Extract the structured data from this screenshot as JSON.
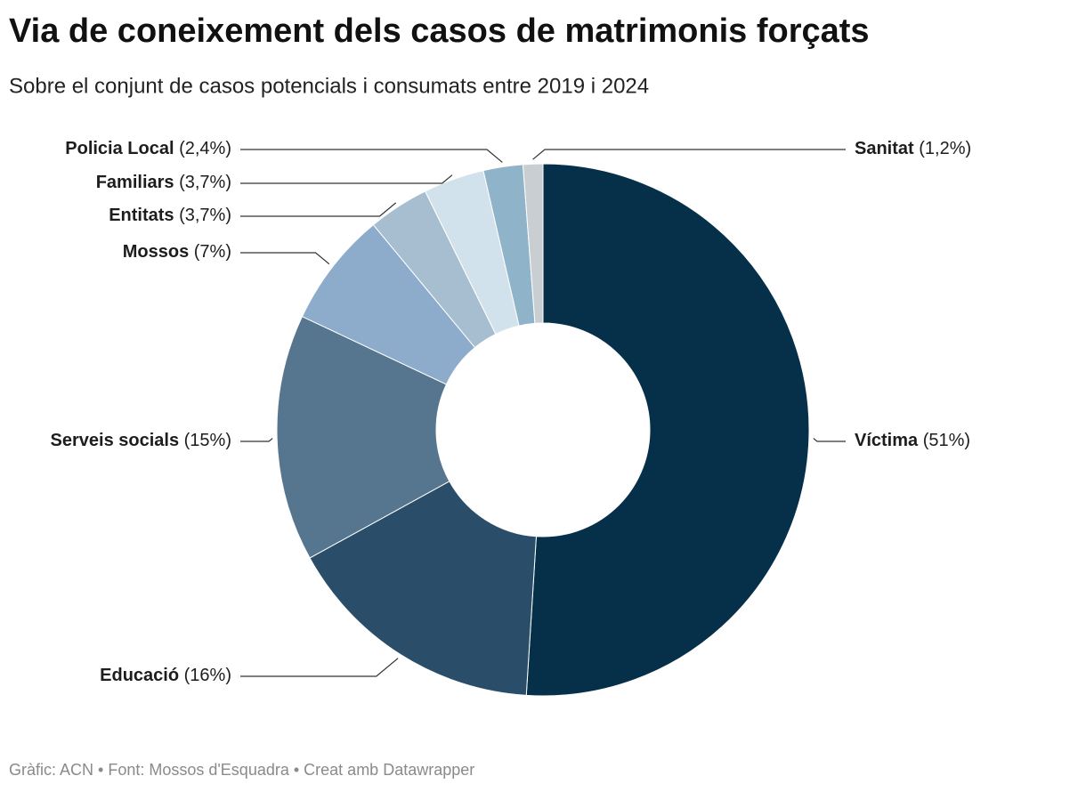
{
  "chart_data": {
    "type": "pie",
    "title": "Via de coneixement dels casos de matrimonis forçats",
    "subtitle": "Sobre el conjunt de casos potencials i consumats entre 2019 i 2024",
    "categories": [
      "Víctima",
      "Educació",
      "Serveis socials",
      "Mossos",
      "Entitats",
      "Familiars",
      "Policia Local",
      "Sanitat"
    ],
    "values": [
      51,
      16,
      15,
      7,
      3.7,
      3.7,
      2.4,
      1.2
    ],
    "value_labels": [
      "(51%)",
      "(16%)",
      "(15%)",
      "(7%)",
      "(3,7%)",
      "(3,7%)",
      "(2,4%)",
      "(1,2%)"
    ],
    "colors": [
      "#06304a",
      "#2a4e69",
      "#56758f",
      "#8daccb",
      "#a7bdd0",
      "#d2e2ec",
      "#8fb3c8",
      "#c8ced2"
    ],
    "donut": true,
    "footer": "Gràfic: ACN • Font: Mossos d'Esquadra • Creat amb Datawrapper"
  }
}
